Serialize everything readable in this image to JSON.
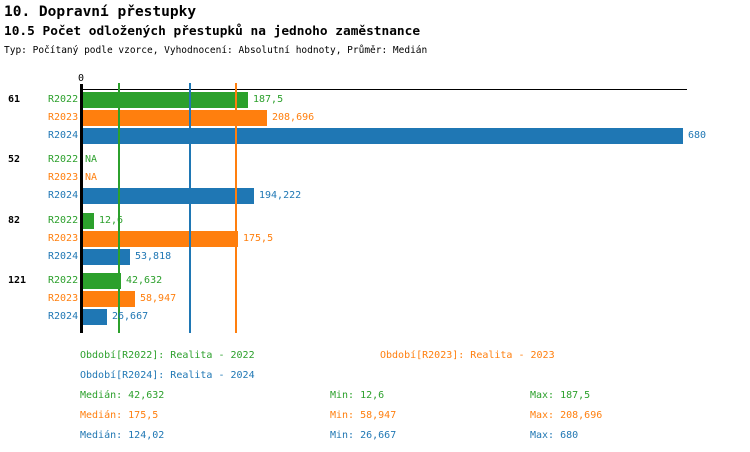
{
  "header": {
    "title1": "10. Dopravní přestupky",
    "title2": "10.5 Počet odložených přestupků na jednoho zaměstnance",
    "subtitle": "Typ: Počítaný podle vzorce, Vyhodnocení: Absolutní hodnoty, Průměr: Medián"
  },
  "colors": {
    "r2022": "#2CA02C",
    "r2023": "#FF7F0E",
    "r2024": "#1F77B4",
    "axis": "#000000"
  },
  "chart_data": {
    "type": "bar",
    "orientation": "horizontal",
    "title": "10.5 Počet odložených přestupků na jednoho zaměstnance",
    "axis": {
      "zero_label": "0",
      "xlim": [
        0,
        680
      ],
      "grid": false
    },
    "series_labels": [
      "R2022",
      "R2023",
      "R2024"
    ],
    "groups": [
      {
        "label": "61",
        "values": [
          187.5,
          208.696,
          680
        ],
        "display": [
          "187,5",
          "208,696",
          "680"
        ]
      },
      {
        "label": "52",
        "values": [
          null,
          null,
          194.222
        ],
        "display": [
          "NA",
          "NA",
          "194,222"
        ]
      },
      {
        "label": "82",
        "values": [
          12.6,
          175.5,
          53.818
        ],
        "display": [
          "12,6",
          "175,5",
          "53,818"
        ]
      },
      {
        "label": "121",
        "values": [
          42.632,
          58.947,
          26.667
        ],
        "display": [
          "42,632",
          "58,947",
          "26,667"
        ]
      }
    ],
    "median_lines": [
      {
        "series": "r2022",
        "value": 42.632
      },
      {
        "series": "r2023",
        "value": 175.5
      },
      {
        "series": "r2024",
        "value": 124.02
      }
    ]
  },
  "legend": {
    "periods": [
      {
        "series": "r2022",
        "label": "Období[R2022]: Realita - 2022"
      },
      {
        "series": "r2023",
        "label": "Období[R2023]: Realita - 2023"
      },
      {
        "series": "r2024",
        "label": "Období[R2024]: Realita - 2024"
      }
    ],
    "stats": [
      {
        "series": "r2022",
        "median": "Medián: 42,632",
        "min": "Min: 12,6",
        "max": "Max: 187,5"
      },
      {
        "series": "r2023",
        "median": "Medián: 175,5",
        "min": "Min: 58,947",
        "max": "Max: 208,696"
      },
      {
        "series": "r2024",
        "median": "Medián: 124,02",
        "min": "Min: 26,667",
        "max": "Max: 680"
      }
    ]
  }
}
